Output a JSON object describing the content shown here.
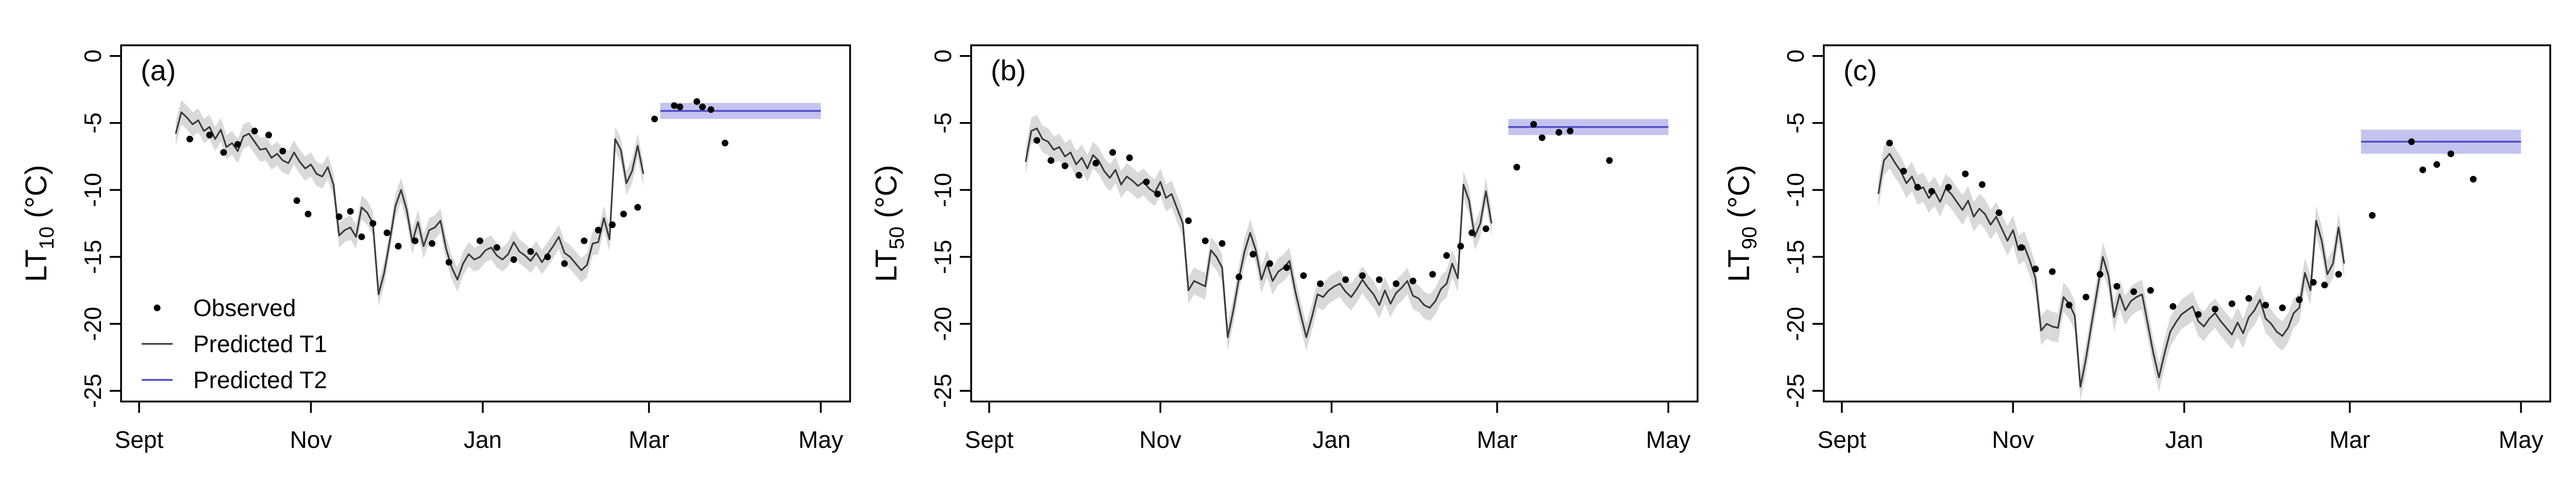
{
  "colors": {
    "t1_line": "#3a3a3a",
    "t1_band": "#d9d9d9",
    "t2_line": "#4c4cc8",
    "t2_band": "#c3c3ef",
    "observed": "#000000"
  },
  "legend": {
    "observed": "Observed",
    "t1": "Predicted T1",
    "t2": "Predicted T2"
  },
  "chart_data": [
    {
      "type": "line",
      "panel_label": "(a)",
      "ylabel": {
        "main": "LT",
        "sub": "10",
        "unit": " (°C)"
      },
      "xlim": [
        0,
        246
      ],
      "ylim": [
        -25.8,
        0.8
      ],
      "x_ticks": [
        {
          "label": "Sept",
          "x": 0
        },
        {
          "label": "Nov",
          "x": 61
        },
        {
          "label": "Jan",
          "x": 122
        },
        {
          "label": "Mar",
          "x": 181
        },
        {
          "label": "May",
          "x": 242
        }
      ],
      "y_ticks": [
        0,
        -5,
        -10,
        -15,
        -20,
        -25
      ],
      "series_t1": {
        "x": [
          13,
          15,
          17,
          19,
          21,
          23,
          25,
          27,
          29,
          31,
          33,
          35,
          37,
          39,
          41,
          43,
          45,
          47,
          49,
          51,
          53,
          55,
          57,
          59,
          61,
          63,
          65,
          67,
          69,
          71,
          73,
          75,
          77,
          79,
          81,
          83,
          85,
          87,
          89,
          91,
          93,
          95,
          97,
          99,
          101,
          103,
          105,
          107,
          109,
          111,
          113,
          115,
          117,
          119,
          121,
          123,
          125,
          127,
          129,
          131,
          133,
          135,
          137,
          139,
          141,
          143,
          145,
          147,
          149,
          151,
          153,
          155,
          157,
          159,
          161,
          163,
          165,
          167,
          169,
          171,
          173,
          175,
          177,
          179
        ],
        "values": [
          -5.8,
          -4.2,
          -4.6,
          -5.1,
          -4.8,
          -5.6,
          -5.3,
          -6.2,
          -5.5,
          -6.8,
          -6.5,
          -7.1,
          -6.0,
          -5.8,
          -6.4,
          -7.0,
          -6.9,
          -7.6,
          -7.3,
          -7.8,
          -8.0,
          -7.2,
          -7.9,
          -8.4,
          -8.1,
          -8.8,
          -9.0,
          -8.3,
          -9.6,
          -13.4,
          -13.0,
          -12.8,
          -13.5,
          -11.3,
          -11.7,
          -12.5,
          -17.8,
          -16.2,
          -13.8,
          -11.2,
          -10.0,
          -11.5,
          -13.9,
          -12.4,
          -14.2,
          -13.0,
          -12.8,
          -12.3,
          -14.4,
          -15.8,
          -16.7,
          -15.5,
          -14.8,
          -15.2,
          -15.0,
          -14.5,
          -14.3,
          -14.9,
          -15.2,
          -14.8,
          -13.9,
          -14.6,
          -14.9,
          -15.3,
          -14.7,
          -15.4,
          -14.8,
          -14.2,
          -13.5,
          -14.7,
          -15.0,
          -15.5,
          -16.0,
          -15.6,
          -14.0,
          -13.9,
          -12.1,
          -13.7,
          -6.2,
          -7.0,
          -9.5,
          -8.6,
          -6.7,
          -8.8
        ],
        "band_half": 0.9
      },
      "series_t2": {
        "x_range": [
          185,
          242
        ],
        "value": -4.1,
        "band_half": 0.6
      },
      "observed": {
        "x": [
          18,
          25,
          30,
          35,
          41,
          46,
          51,
          56,
          60,
          71,
          75,
          79,
          83,
          88,
          92,
          98,
          104,
          110,
          121,
          127,
          133,
          139,
          145,
          151,
          158,
          163,
          168,
          172,
          177,
          183,
          190,
          192,
          198,
          200,
          203,
          208
        ],
        "values": [
          -6.2,
          -5.9,
          -7.2,
          -6.6,
          -5.6,
          -5.9,
          -7.1,
          -10.8,
          -11.8,
          -12.0,
          -11.6,
          -13.5,
          -12.5,
          -13.2,
          -14.2,
          -13.8,
          -14.0,
          -15.4,
          -13.8,
          -14.3,
          -15.2,
          -14.6,
          -15.0,
          -15.5,
          -13.8,
          -13.0,
          -12.6,
          -11.8,
          -11.3,
          -4.7,
          -3.7,
          -3.8,
          -3.4,
          -3.8,
          -4.0,
          -6.5
        ]
      }
    },
    {
      "type": "line",
      "panel_label": "(b)",
      "ylabel": {
        "main": "LT",
        "sub": "50",
        "unit": " (°C)"
      },
      "xlim": [
        0,
        246
      ],
      "ylim": [
        -25.8,
        0.8
      ],
      "x_ticks": [
        {
          "label": "Sept",
          "x": 0
        },
        {
          "label": "Nov",
          "x": 61
        },
        {
          "label": "Jan",
          "x": 122
        },
        {
          "label": "Mar",
          "x": 181
        },
        {
          "label": "May",
          "x": 242
        }
      ],
      "y_ticks": [
        0,
        -5,
        -10,
        -15,
        -20,
        -25
      ],
      "series_t1": {
        "x": [
          13,
          15,
          17,
          19,
          21,
          23,
          25,
          27,
          29,
          31,
          33,
          35,
          37,
          39,
          41,
          43,
          45,
          47,
          49,
          51,
          53,
          55,
          57,
          59,
          61,
          63,
          65,
          67,
          69,
          71,
          73,
          75,
          77,
          79,
          81,
          83,
          85,
          87,
          89,
          91,
          93,
          95,
          97,
          99,
          101,
          103,
          105,
          107,
          109,
          111,
          113,
          115,
          117,
          119,
          121,
          123,
          125,
          127,
          129,
          131,
          133,
          135,
          137,
          139,
          141,
          143,
          145,
          147,
          149,
          151,
          153,
          155,
          157,
          159,
          161,
          163,
          165,
          167,
          169,
          171,
          173,
          175,
          177,
          179
        ],
        "values": [
          -7.9,
          -5.6,
          -5.4,
          -6.2,
          -6.4,
          -7.0,
          -6.8,
          -7.5,
          -7.2,
          -8.1,
          -7.6,
          -8.4,
          -7.4,
          -7.8,
          -8.6,
          -9.1,
          -8.5,
          -9.6,
          -9.0,
          -9.3,
          -9.7,
          -9.4,
          -9.9,
          -10.2,
          -9.4,
          -10.6,
          -10.3,
          -11.4,
          -12.5,
          -17.5,
          -16.8,
          -17.0,
          -17.2,
          -14.5,
          -15.0,
          -15.8,
          -21.0,
          -19.0,
          -16.6,
          -14.6,
          -13.2,
          -14.5,
          -16.7,
          -15.5,
          -16.8,
          -16.1,
          -15.8,
          -15.3,
          -17.5,
          -19.3,
          -21.0,
          -19.5,
          -17.8,
          -18.0,
          -17.5,
          -17.2,
          -17.0,
          -17.6,
          -18.0,
          -17.4,
          -16.7,
          -17.3,
          -17.8,
          -18.6,
          -17.5,
          -18.5,
          -17.7,
          -17.3,
          -16.8,
          -17.9,
          -18.1,
          -18.6,
          -18.8,
          -18.3,
          -17.4,
          -17.0,
          -15.5,
          -16.6,
          -9.6,
          -10.8,
          -13.5,
          -12.5,
          -10.1,
          -12.5
        ],
        "band_half": 1.0
      },
      "series_t2": {
        "x_range": [
          185,
          242
        ],
        "value": -5.3,
        "band_half": 0.6
      },
      "observed": {
        "x": [
          17,
          22,
          27,
          32,
          38,
          44,
          50,
          56,
          60,
          71,
          77,
          83,
          89,
          94,
          100,
          106,
          112,
          118,
          127,
          133,
          139,
          145,
          151,
          158,
          163,
          168,
          172,
          177,
          188,
          194,
          197,
          203,
          207,
          221
        ],
        "values": [
          -6.3,
          -7.8,
          -8.2,
          -8.9,
          -8.0,
          -7.2,
          -7.6,
          -9.4,
          -10.3,
          -12.3,
          -13.8,
          -14.0,
          -16.5,
          -14.8,
          -15.5,
          -15.8,
          -16.4,
          -17.0,
          -16.7,
          -16.4,
          -16.7,
          -17.0,
          -16.8,
          -16.3,
          -14.9,
          -14.2,
          -13.2,
          -12.9,
          -8.3,
          -5.1,
          -6.1,
          -5.7,
          -5.6,
          -7.8
        ]
      }
    },
    {
      "type": "line",
      "panel_label": "(c)",
      "ylabel": {
        "main": "LT",
        "sub": "90",
        "unit": " (°C)"
      },
      "xlim": [
        0,
        246
      ],
      "ylim": [
        -25.8,
        0.8
      ],
      "x_ticks": [
        {
          "label": "Sept",
          "x": 0
        },
        {
          "label": "Nov",
          "x": 61
        },
        {
          "label": "Jan",
          "x": 122
        },
        {
          "label": "Mar",
          "x": 181
        },
        {
          "label": "May",
          "x": 242
        }
      ],
      "y_ticks": [
        0,
        -5,
        -10,
        -15,
        -20,
        -25
      ],
      "series_t1": {
        "x": [
          13,
          15,
          17,
          19,
          21,
          23,
          25,
          27,
          29,
          31,
          33,
          35,
          37,
          39,
          41,
          43,
          45,
          47,
          49,
          51,
          53,
          55,
          57,
          59,
          61,
          63,
          65,
          67,
          69,
          71,
          73,
          75,
          77,
          79,
          81,
          83,
          85,
          87,
          89,
          91,
          93,
          95,
          97,
          99,
          101,
          103,
          105,
          107,
          109,
          111,
          113,
          115,
          117,
          119,
          121,
          123,
          125,
          127,
          129,
          131,
          133,
          135,
          137,
          139,
          141,
          143,
          145,
          147,
          149,
          151,
          153,
          155,
          157,
          159,
          161,
          163,
          165,
          167,
          169,
          171,
          173,
          175,
          177,
          179
        ],
        "values": [
          -10.3,
          -7.8,
          -7.3,
          -8.0,
          -8.6,
          -9.5,
          -9.0,
          -10.0,
          -9.8,
          -10.6,
          -10.1,
          -10.9,
          -9.9,
          -10.3,
          -10.9,
          -11.5,
          -10.8,
          -12.0,
          -11.4,
          -11.8,
          -12.6,
          -12.0,
          -12.9,
          -13.8,
          -13.0,
          -14.5,
          -14.2,
          -15.3,
          -16.6,
          -20.5,
          -20.0,
          -20.2,
          -20.3,
          -18.0,
          -18.5,
          -19.4,
          -24.7,
          -22.6,
          -20.0,
          -17.5,
          -15.0,
          -16.4,
          -19.5,
          -17.8,
          -19.0,
          -18.3,
          -18.0,
          -17.8,
          -20.0,
          -22.2,
          -24.0,
          -22.2,
          -20.6,
          -19.9,
          -19.3,
          -19.0,
          -18.7,
          -19.8,
          -20.2,
          -19.6,
          -19.2,
          -19.8,
          -20.3,
          -20.8,
          -19.9,
          -20.7,
          -19.5,
          -19.0,
          -18.2,
          -19.6,
          -20.0,
          -20.6,
          -20.9,
          -20.3,
          -19.2,
          -18.8,
          -16.2,
          -17.5,
          -12.3,
          -13.8,
          -16.3,
          -15.5,
          -12.8,
          -15.5
        ],
        "band_half": 1.1
      },
      "series_t2": {
        "x_range": [
          185,
          242
        ],
        "value": -6.4,
        "band_half": 0.9
      },
      "observed": {
        "x": [
          17,
          22,
          27,
          32,
          38,
          44,
          50,
          56,
          64,
          69,
          75,
          81,
          87,
          92,
          98,
          104,
          110,
          118,
          127,
          133,
          139,
          145,
          151,
          157,
          163,
          168,
          172,
          177,
          189,
          203,
          207,
          212,
          217,
          225
        ],
        "values": [
          -6.5,
          -8.6,
          -9.8,
          -10.1,
          -9.8,
          -8.8,
          -9.6,
          -11.7,
          -14.3,
          -15.9,
          -16.1,
          -18.6,
          -18.0,
          -16.3,
          -17.2,
          -17.6,
          -17.5,
          -18.7,
          -19.3,
          -18.9,
          -18.5,
          -18.1,
          -18.6,
          -18.8,
          -18.2,
          -16.9,
          -17.1,
          -16.3,
          -11.9,
          -6.4,
          -8.5,
          -8.1,
          -7.3,
          -9.2
        ]
      }
    }
  ]
}
